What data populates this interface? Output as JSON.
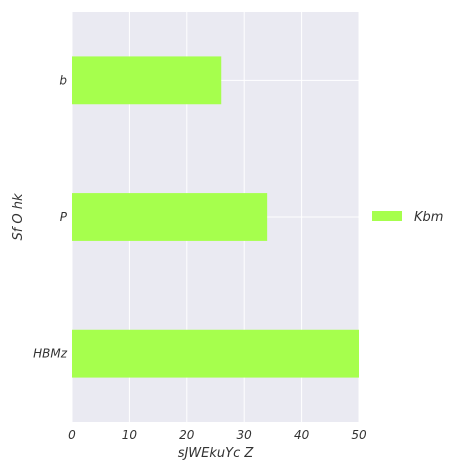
{
  "chart_data": {
    "type": "bar",
    "orientation": "horizontal",
    "categories": [
      "b",
      "P",
      "HBMz"
    ],
    "series": [
      {
        "name": "Kbm",
        "values": [
          26,
          34,
          50
        ]
      }
    ],
    "xlabel": "sJWEkuYc Z",
    "ylabel": "Sf  O hk",
    "xlim": [
      0,
      50
    ],
    "xticks": [
      "0",
      "10",
      "20",
      "30",
      "40",
      "50"
    ],
    "grid": true,
    "legend_position": "right",
    "colors": {
      "bar": "#a6ff4d",
      "plot_background": "#eaeaf2",
      "grid": "#ffffff",
      "text": "#333333"
    }
  }
}
